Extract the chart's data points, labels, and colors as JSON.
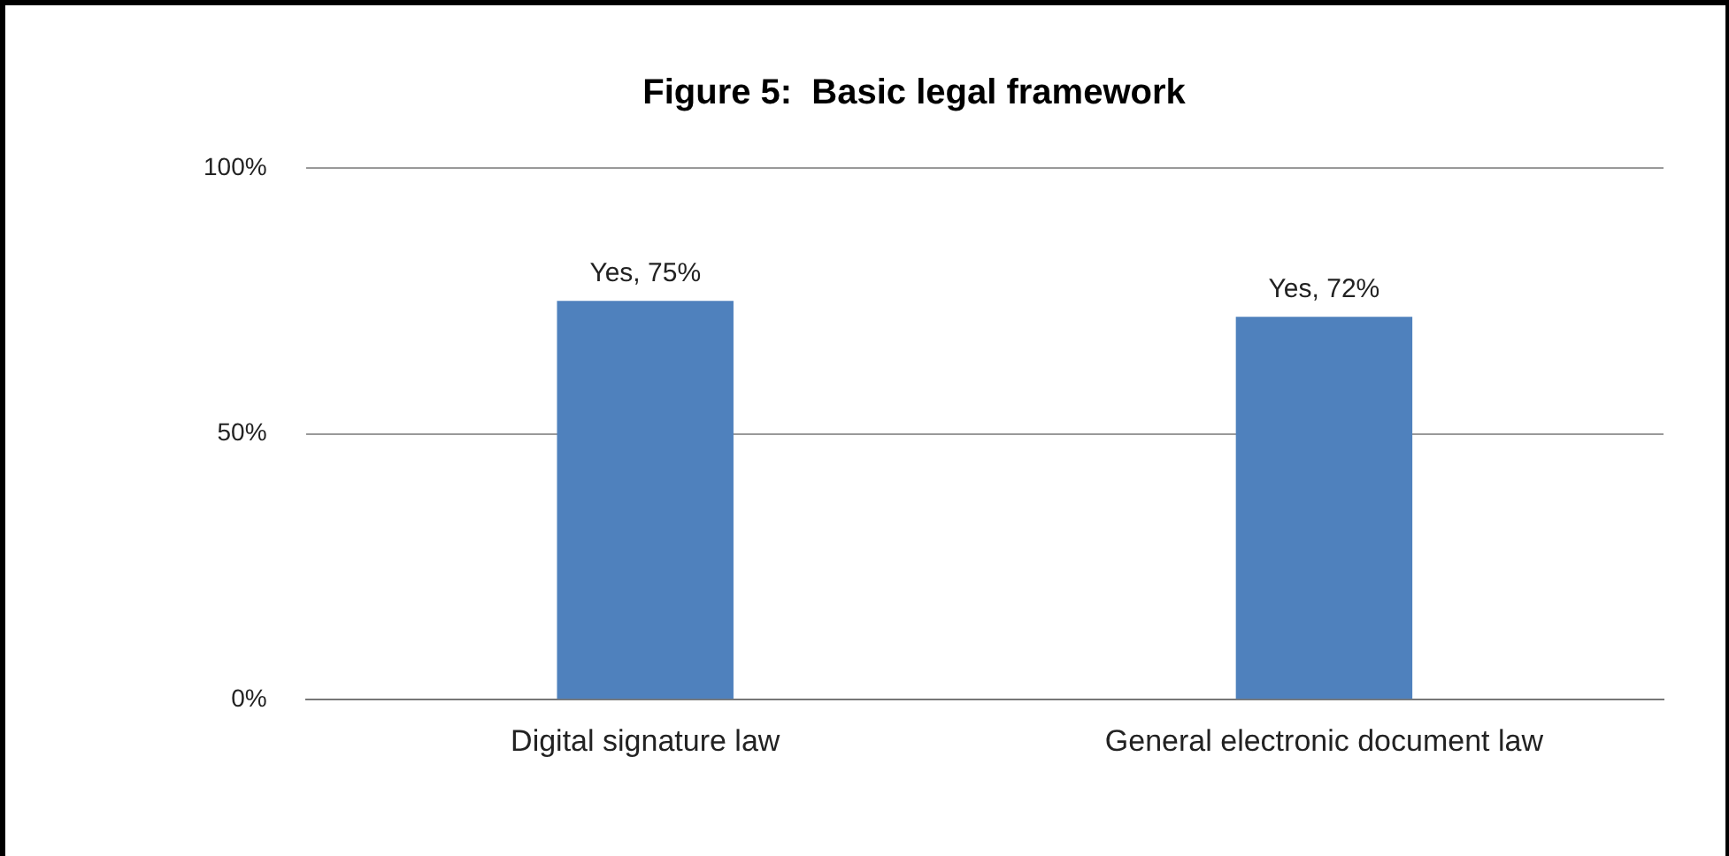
{
  "chart_data": {
    "type": "bar",
    "title": "Figure 5:  Basic legal framework",
    "categories": [
      "Digital signature law",
      "General electronic document law"
    ],
    "values": [
      75,
      72
    ],
    "color": "#4f81bd",
    "value_labels": [
      "Yes, 75%",
      "Yes, 72%"
    ],
    "ylim": [
      0,
      100
    ],
    "yticks": [
      {
        "value": 0,
        "label": "0%"
      },
      {
        "value": 50,
        "label": "50%"
      },
      {
        "value": 100,
        "label": "100%"
      }
    ],
    "grid": "y"
  }
}
